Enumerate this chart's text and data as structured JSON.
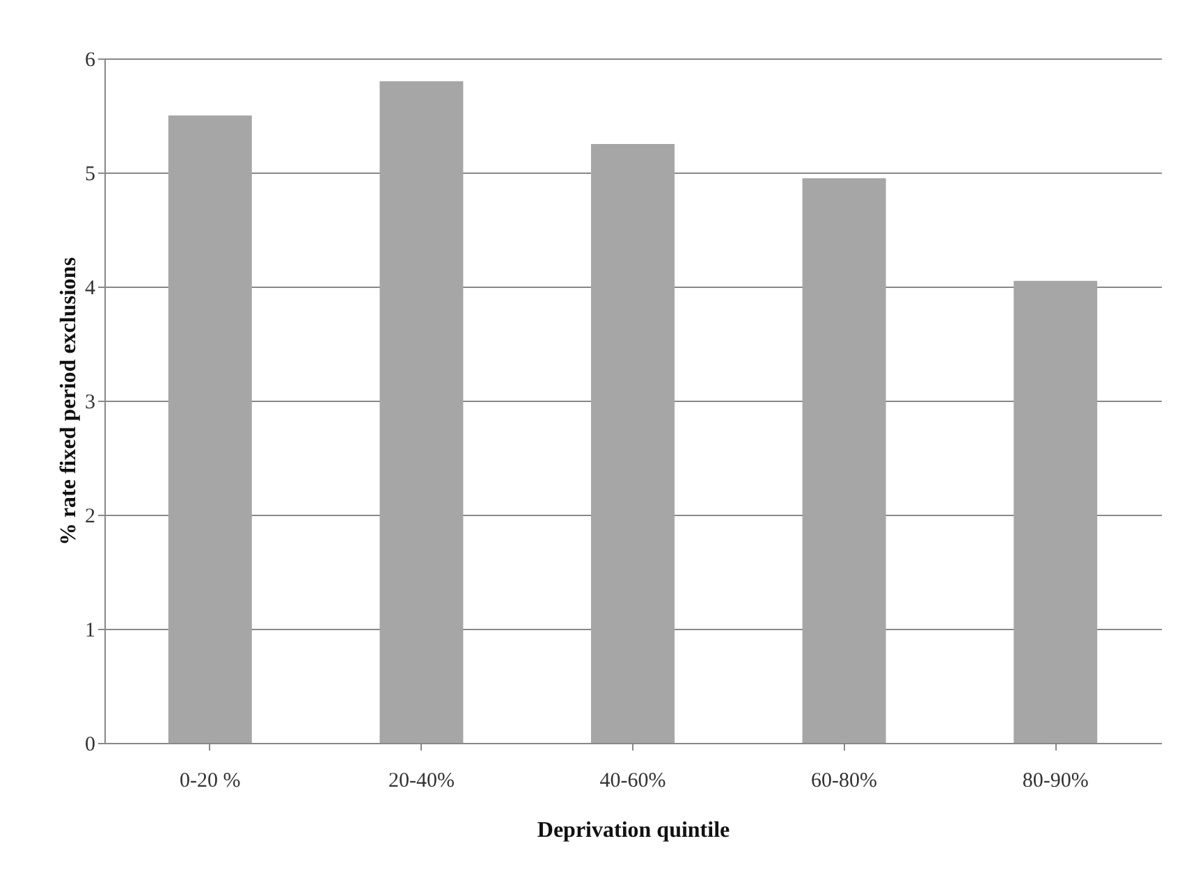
{
  "chart_data": {
    "type": "bar",
    "xlabel": "Deprivation quintile",
    "ylabel": "% rate fixed period exclusions",
    "categories": [
      "0-20 %",
      "20-40%",
      "40-60%",
      "60-80%",
      "80-90%"
    ],
    "values": [
      5.5,
      5.8,
      5.25,
      4.95,
      4.05
    ],
    "color": "#a6a6a6",
    "ylim": [
      0,
      6
    ],
    "yticks": [
      0,
      1,
      2,
      3,
      4,
      5,
      6
    ],
    "grid": "y"
  }
}
